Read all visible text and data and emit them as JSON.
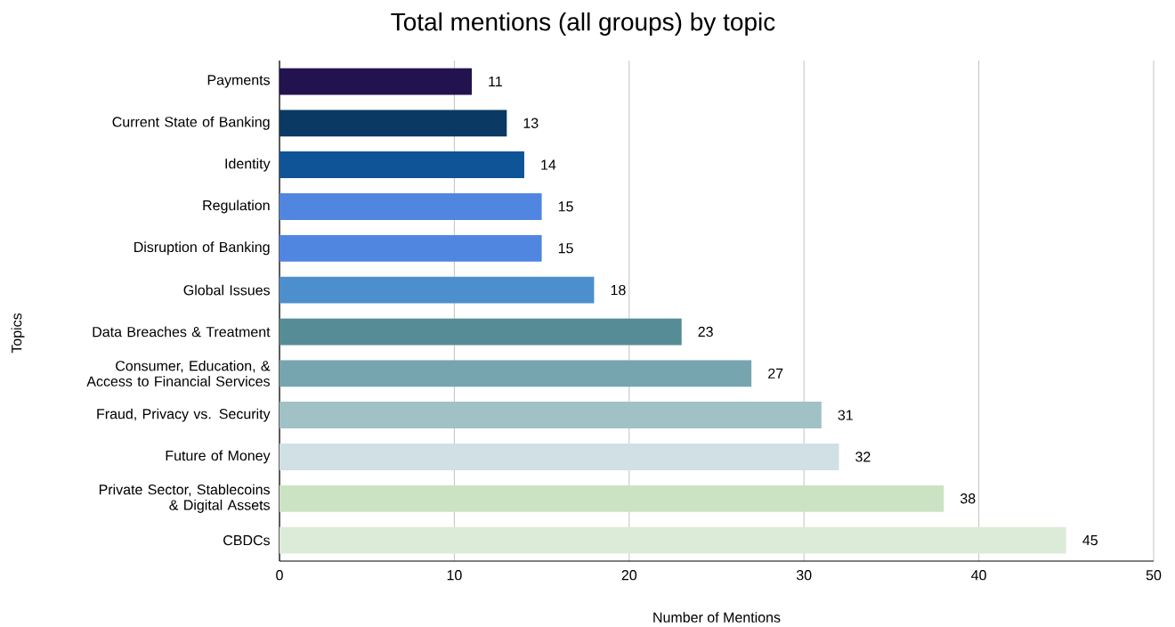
{
  "chart_data": {
    "type": "bar",
    "orientation": "horizontal",
    "title": "Total mentions (all groups) by topic",
    "xlabel": "Number of Mentions",
    "ylabel": "Topics",
    "categories": [
      "Payments",
      "Current State of Banking",
      "Identity",
      "Regulation",
      "Disruption of Banking",
      "Global Issues",
      "Data Breaches & Treatment",
      "Consumer, Education, & Access to Financial Services",
      "Fraud, Privacy vs. Security",
      "Future of Money",
      "Private Sector, Stablecoins & Digital Assets",
      "CBDCs"
    ],
    "values": [
      11,
      13,
      14,
      15,
      15,
      18,
      23,
      27,
      31,
      32,
      38,
      45
    ],
    "colors": [
      "#22134f",
      "#0a3a63",
      "#0e5497",
      "#5086e0",
      "#5086e0",
      "#4d8fcc",
      "#568c96",
      "#76a5b0",
      "#a0c1c6",
      "#d0e0e4",
      "#cce3c3",
      "#dcebd8"
    ],
    "xlim": [
      0,
      50
    ],
    "xticks": [
      0,
      10,
      20,
      30,
      40,
      50
    ],
    "grid": "x",
    "data_labels": true
  }
}
